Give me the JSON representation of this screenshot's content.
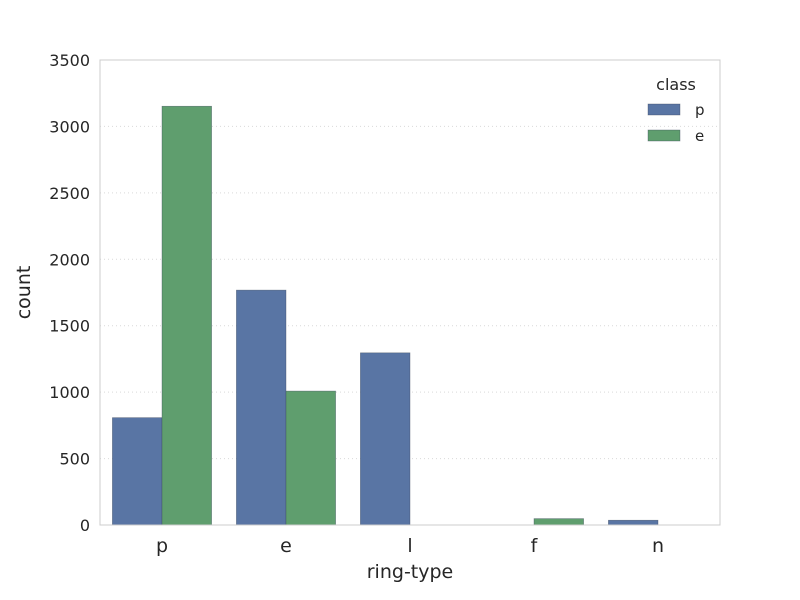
{
  "chart_data": {
    "type": "bar",
    "title": "",
    "xlabel": "ring-type",
    "ylabel": "count",
    "categories": [
      "p",
      "e",
      "l",
      "f",
      "n"
    ],
    "series": [
      {
        "name": "p",
        "values": [
          808,
          1768,
          1296,
          0,
          36
        ]
      },
      {
        "name": "e",
        "values": [
          3152,
          1008,
          0,
          48,
          0
        ]
      }
    ],
    "ylim": [
      0,
      3500
    ],
    "yticks": [
      0,
      500,
      1000,
      1500,
      2000,
      2500,
      3000,
      3500
    ],
    "grid": "horizontal dotted",
    "legend": {
      "title": "class",
      "placement": "top-right"
    },
    "colors": {
      "p": "#5975a4",
      "e": "#5f9e6e"
    }
  }
}
